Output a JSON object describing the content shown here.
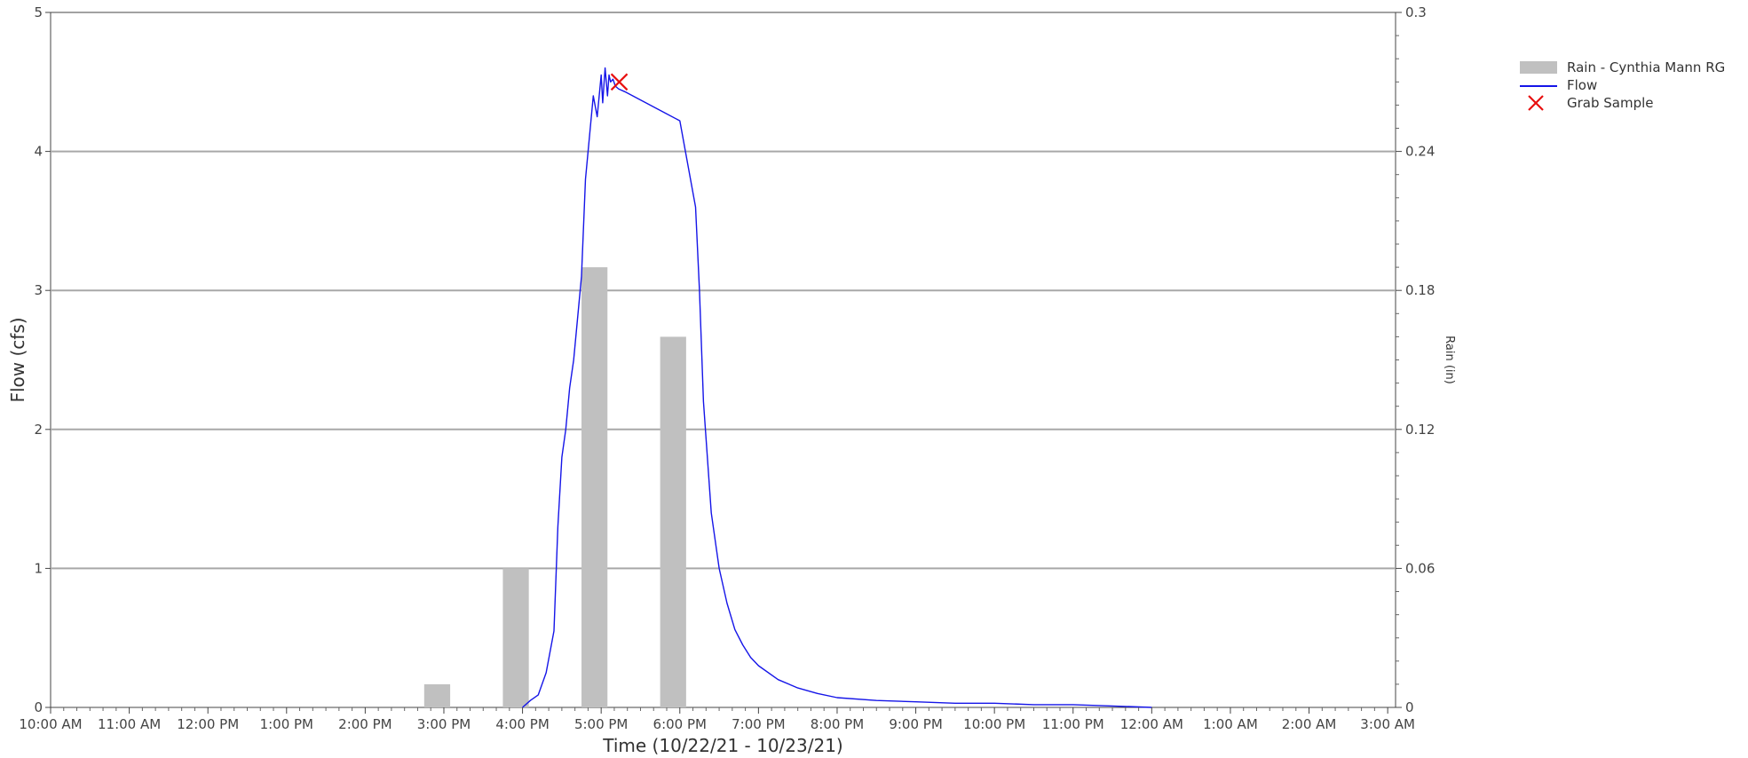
{
  "chart_data": {
    "type": "bar+line",
    "title": "",
    "xlabel": "Time (10/22/21 - 10/23/21)",
    "ylabel_left": "Flow (cfs)",
    "ylabel_right": "Rain (in)",
    "x_tick_labels": [
      "10:00 AM",
      "11:00 AM",
      "12:00 PM",
      "1:00 PM",
      "2:00 PM",
      "3:00 PM",
      "4:00 PM",
      "5:00 PM",
      "6:00 PM",
      "7:00 PM",
      "8:00 PM",
      "9:00 PM",
      "10:00 PM",
      "11:00 PM",
      "12:00 AM",
      "1:00 AM",
      "2:00 AM",
      "3:00 AM"
    ],
    "xlim_hours": [
      10.0,
      27.1
    ],
    "ylim_left": [
      0,
      5
    ],
    "ylim_right": [
      0,
      0.3
    ],
    "left_ticks": [
      "0",
      "1",
      "2",
      "3",
      "4",
      "5"
    ],
    "right_ticks": [
      "0",
      "0.06",
      "0.12",
      "0.18",
      "0.24",
      "0.3"
    ],
    "gridlines": "horizontal",
    "legend_position": "right",
    "legend": [
      {
        "label": "Rain - Cynthia Mann RG",
        "kind": "bar",
        "color": "#c0c0c0"
      },
      {
        "label": "Flow",
        "kind": "line",
        "color": "#1515e8"
      },
      {
        "label": "Grab Sample",
        "kind": "marker",
        "color": "#e81010"
      }
    ],
    "series": [
      {
        "name": "Rain - Cynthia Mann RG",
        "type": "bar",
        "axis": "right",
        "color": "#c0c0c0",
        "x_start_hours": [
          14.75,
          15.75,
          16.75,
          17.75
        ],
        "x_end_hours": [
          15.08,
          16.08,
          17.08,
          18.08
        ],
        "values": [
          0.01,
          0.06,
          0.19,
          0.16
        ]
      },
      {
        "name": "Flow",
        "type": "line",
        "axis": "left",
        "color": "#1515e8",
        "x_hours": [
          16.0,
          16.1,
          16.2,
          16.3,
          16.4,
          16.45,
          16.5,
          16.55,
          16.6,
          16.65,
          16.7,
          16.75,
          16.8,
          16.85,
          16.9,
          16.95,
          17.0,
          17.02,
          17.05,
          17.08,
          17.1,
          17.12,
          17.15,
          17.18,
          17.22,
          17.3,
          18.0,
          18.2,
          18.25,
          18.3,
          18.4,
          18.5,
          18.6,
          18.7,
          18.8,
          18.9,
          19.0,
          19.25,
          19.5,
          19.75,
          20.0,
          20.5,
          21.0,
          21.5,
          22.0,
          22.5,
          23.0,
          23.5,
          24.0
        ],
        "values": [
          0.0,
          0.05,
          0.09,
          0.25,
          0.55,
          1.3,
          1.8,
          2.0,
          2.3,
          2.5,
          2.8,
          3.1,
          3.8,
          4.1,
          4.4,
          4.25,
          4.55,
          4.35,
          4.6,
          4.4,
          4.55,
          4.5,
          4.52,
          4.47,
          4.45,
          4.43,
          4.22,
          3.6,
          3.0,
          2.2,
          1.4,
          1.0,
          0.75,
          0.56,
          0.45,
          0.36,
          0.3,
          0.2,
          0.14,
          0.1,
          0.07,
          0.05,
          0.04,
          0.03,
          0.03,
          0.02,
          0.02,
          0.01,
          0.0
        ]
      },
      {
        "name": "Grab Sample",
        "type": "scatter",
        "axis": "left",
        "color": "#e81010",
        "x_hours": [
          17.23
        ],
        "values": [
          4.5
        ]
      }
    ]
  }
}
